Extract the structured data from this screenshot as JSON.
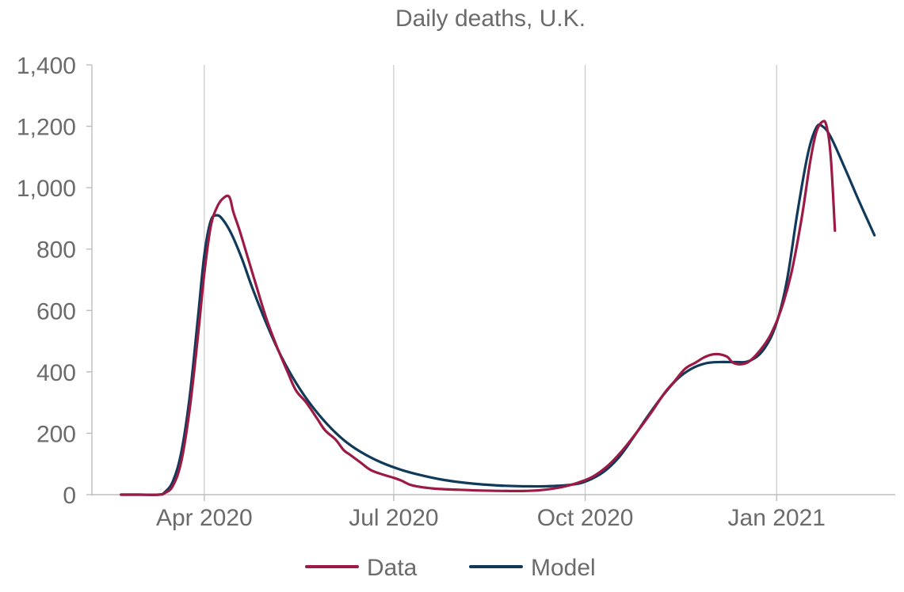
{
  "chart_data": {
    "type": "line",
    "title": "Daily deaths, U.K.",
    "xlabel": "",
    "ylabel": "",
    "ylim": [
      0,
      1400
    ],
    "yticks": [
      0,
      200,
      400,
      600,
      800,
      1000,
      1200,
      1400
    ],
    "ytick_labels": [
      "0",
      "200",
      "400",
      "600",
      "800",
      "1,000",
      "1,200",
      "1,400"
    ],
    "xlim": [
      "2020-02-07",
      "2021-02-27"
    ],
    "xticks": [
      "2020-04-01",
      "2020-07-01",
      "2020-10-01",
      "2021-01-01"
    ],
    "xtick_labels": [
      "Apr 2020",
      "Jul 2020",
      "Oct 2020",
      "Jan 2021"
    ],
    "grid": {
      "vertical": true,
      "horizontal": false
    },
    "legend_position": "bottom-center",
    "series": [
      {
        "name": "Data",
        "color": "#9b1b45",
        "points": [
          [
            "2020-02-21",
            0
          ],
          [
            "2020-03-01",
            0
          ],
          [
            "2020-03-10",
            0
          ],
          [
            "2020-03-13",
            5
          ],
          [
            "2020-03-17",
            30
          ],
          [
            "2020-03-21",
            110
          ],
          [
            "2020-03-25",
            280
          ],
          [
            "2020-03-29",
            520
          ],
          [
            "2020-04-01",
            720
          ],
          [
            "2020-04-04",
            870
          ],
          [
            "2020-04-07",
            935
          ],
          [
            "2020-04-10",
            965
          ],
          [
            "2020-04-13",
            970
          ],
          [
            "2020-04-15",
            920
          ],
          [
            "2020-04-18",
            860
          ],
          [
            "2020-04-22",
            770
          ],
          [
            "2020-04-26",
            680
          ],
          [
            "2020-05-01",
            570
          ],
          [
            "2020-05-06",
            480
          ],
          [
            "2020-05-11",
            400
          ],
          [
            "2020-05-15",
            340
          ],
          [
            "2020-05-20",
            300
          ],
          [
            "2020-05-25",
            250
          ],
          [
            "2020-05-29",
            210
          ],
          [
            "2020-06-03",
            180
          ],
          [
            "2020-06-07",
            145
          ],
          [
            "2020-06-10",
            130
          ],
          [
            "2020-06-15",
            105
          ],
          [
            "2020-06-20",
            80
          ],
          [
            "2020-06-26",
            65
          ],
          [
            "2020-07-01",
            55
          ],
          [
            "2020-07-05",
            45
          ],
          [
            "2020-07-10",
            30
          ],
          [
            "2020-07-20",
            20
          ],
          [
            "2020-08-01",
            16
          ],
          [
            "2020-08-15",
            13
          ],
          [
            "2020-09-01",
            12
          ],
          [
            "2020-09-10",
            15
          ],
          [
            "2020-09-20",
            25
          ],
          [
            "2020-09-28",
            40
          ],
          [
            "2020-10-05",
            60
          ],
          [
            "2020-10-12",
            95
          ],
          [
            "2020-10-19",
            145
          ],
          [
            "2020-10-26",
            205
          ],
          [
            "2020-11-02",
            270
          ],
          [
            "2020-11-08",
            330
          ],
          [
            "2020-11-13",
            370
          ],
          [
            "2020-11-18",
            410
          ],
          [
            "2020-11-23",
            430
          ],
          [
            "2020-11-28",
            450
          ],
          [
            "2020-12-03",
            458
          ],
          [
            "2020-12-08",
            450
          ],
          [
            "2020-12-11",
            430
          ],
          [
            "2020-12-15",
            425
          ],
          [
            "2020-12-19",
            435
          ],
          [
            "2020-12-24",
            470
          ],
          [
            "2020-12-29",
            520
          ],
          [
            "2021-01-03",
            600
          ],
          [
            "2021-01-08",
            720
          ],
          [
            "2021-01-13",
            900
          ],
          [
            "2021-01-17",
            1080
          ],
          [
            "2021-01-20",
            1180
          ],
          [
            "2021-01-23",
            1215
          ],
          [
            "2021-01-25",
            1200
          ],
          [
            "2021-01-27",
            1100
          ],
          [
            "2021-01-29",
            860
          ]
        ]
      },
      {
        "name": "Model",
        "color": "#10395a",
        "points": [
          [
            "2020-02-21",
            0
          ],
          [
            "2020-03-01",
            0
          ],
          [
            "2020-03-10",
            0
          ],
          [
            "2020-03-13",
            8
          ],
          [
            "2020-03-17",
            45
          ],
          [
            "2020-03-21",
            140
          ],
          [
            "2020-03-25",
            320
          ],
          [
            "2020-03-29",
            580
          ],
          [
            "2020-04-01",
            780
          ],
          [
            "2020-04-04",
            890
          ],
          [
            "2020-04-07",
            910
          ],
          [
            "2020-04-10",
            895
          ],
          [
            "2020-04-14",
            850
          ],
          [
            "2020-04-19",
            770
          ],
          [
            "2020-04-24",
            675
          ],
          [
            "2020-05-01",
            555
          ],
          [
            "2020-05-08",
            450
          ],
          [
            "2020-05-15",
            365
          ],
          [
            "2020-05-22",
            295
          ],
          [
            "2020-05-30",
            230
          ],
          [
            "2020-06-07",
            178
          ],
          [
            "2020-06-15",
            140
          ],
          [
            "2020-06-25",
            105
          ],
          [
            "2020-07-05",
            80
          ],
          [
            "2020-07-15",
            62
          ],
          [
            "2020-07-25",
            48
          ],
          [
            "2020-08-05",
            38
          ],
          [
            "2020-08-20",
            30
          ],
          [
            "2020-09-05",
            27
          ],
          [
            "2020-09-15",
            28
          ],
          [
            "2020-09-25",
            33
          ],
          [
            "2020-10-02",
            45
          ],
          [
            "2020-10-10",
            75
          ],
          [
            "2020-10-17",
            120
          ],
          [
            "2020-10-24",
            185
          ],
          [
            "2020-10-31",
            255
          ],
          [
            "2020-11-07",
            320
          ],
          [
            "2020-11-14",
            375
          ],
          [
            "2020-11-21",
            410
          ],
          [
            "2020-11-28",
            428
          ],
          [
            "2020-12-05",
            432
          ],
          [
            "2020-12-12",
            432
          ],
          [
            "2020-12-19",
            436
          ],
          [
            "2020-12-26",
            475
          ],
          [
            "2021-01-01",
            560
          ],
          [
            "2021-01-06",
            700
          ],
          [
            "2021-01-11",
            920
          ],
          [
            "2021-01-16",
            1110
          ],
          [
            "2021-01-20",
            1195
          ],
          [
            "2021-01-23",
            1200
          ],
          [
            "2021-01-27",
            1165
          ],
          [
            "2021-02-03",
            1060
          ],
          [
            "2021-02-10",
            950
          ],
          [
            "2021-02-17",
            845
          ]
        ]
      }
    ]
  }
}
